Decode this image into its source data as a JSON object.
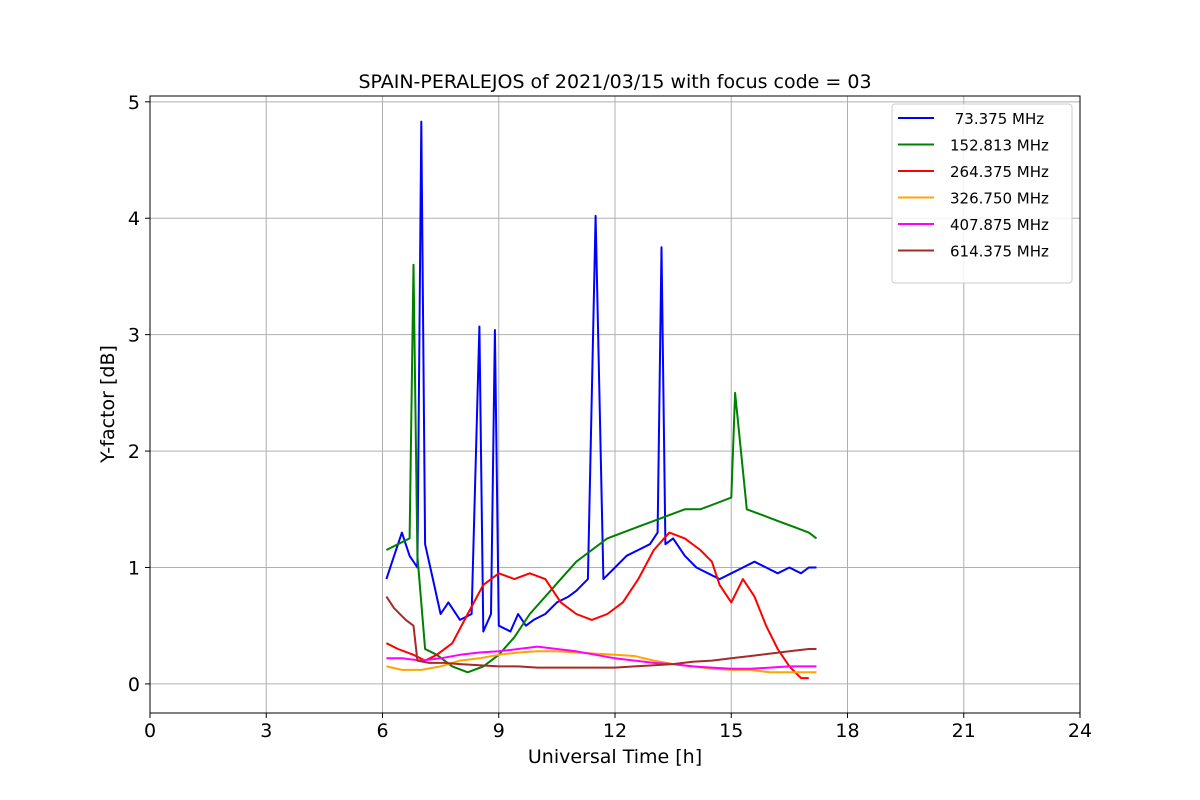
{
  "chart_data": {
    "type": "line",
    "title": "SPAIN-PERALEJOS of 2021/03/15 with focus code = 03",
    "xlabel": "Universal Time [h]",
    "ylabel": "Y-factor [dB]",
    "xlim": [
      0,
      24
    ],
    "ylim": [
      -0.25,
      5.05
    ],
    "xticks": [
      0,
      3,
      6,
      9,
      12,
      15,
      18,
      21,
      24
    ],
    "xtick_labels": [
      "0",
      "3",
      "6",
      "9",
      "12",
      "15",
      "18",
      "21",
      "24"
    ],
    "yticks": [
      0,
      1,
      2,
      3,
      4,
      5
    ],
    "ytick_labels": [
      "0",
      "1",
      "2",
      "3",
      "4",
      "5"
    ],
    "grid": true,
    "legend_position": "top-right",
    "series": [
      {
        "name": " 73.375 MHz",
        "color": "#0000ff",
        "x": [
          6.1,
          6.3,
          6.5,
          6.7,
          6.9,
          7.0,
          7.1,
          7.3,
          7.5,
          7.7,
          8.0,
          8.3,
          8.5,
          8.6,
          8.8,
          8.9,
          9.0,
          9.3,
          9.5,
          9.7,
          9.9,
          10.2,
          10.5,
          10.8,
          11.0,
          11.3,
          11.5,
          11.7,
          12.0,
          12.3,
          12.6,
          12.9,
          13.1,
          13.2,
          13.3,
          13.5,
          13.8,
          14.1,
          14.4,
          14.7,
          15.0,
          15.3,
          15.6,
          15.9,
          16.2,
          16.5,
          16.8,
          17.0,
          17.2
        ],
        "y": [
          0.9,
          1.1,
          1.3,
          1.1,
          1.0,
          4.83,
          1.2,
          0.9,
          0.6,
          0.7,
          0.55,
          0.6,
          3.07,
          0.45,
          0.6,
          3.04,
          0.5,
          0.45,
          0.6,
          0.5,
          0.55,
          0.6,
          0.7,
          0.75,
          0.8,
          0.9,
          4.02,
          0.9,
          1.0,
          1.1,
          1.15,
          1.2,
          1.3,
          3.75,
          1.2,
          1.25,
          1.1,
          1.0,
          0.95,
          0.9,
          0.95,
          1.0,
          1.05,
          1.0,
          0.95,
          1.0,
          0.95,
          1.0,
          1.0
        ]
      },
      {
        "name": "152.813 MHz",
        "color": "#008000",
        "x": [
          6.1,
          6.4,
          6.7,
          6.8,
          6.9,
          7.1,
          7.4,
          7.8,
          8.2,
          8.6,
          9.0,
          9.4,
          9.8,
          10.2,
          10.6,
          11.0,
          11.4,
          11.8,
          12.2,
          12.6,
          13.0,
          13.4,
          13.8,
          14.2,
          14.6,
          15.0,
          15.1,
          15.4,
          15.8,
          16.2,
          16.6,
          17.0,
          17.2
        ],
        "y": [
          1.15,
          1.2,
          1.25,
          3.6,
          1.1,
          0.3,
          0.25,
          0.15,
          0.1,
          0.15,
          0.25,
          0.4,
          0.6,
          0.75,
          0.9,
          1.05,
          1.15,
          1.25,
          1.3,
          1.35,
          1.4,
          1.45,
          1.5,
          1.5,
          1.55,
          1.6,
          2.5,
          1.5,
          1.45,
          1.4,
          1.35,
          1.3,
          1.25
        ]
      },
      {
        "name": "264.375 MHz",
        "color": "#ff0000",
        "x": [
          6.1,
          6.4,
          6.8,
          7.1,
          7.4,
          7.8,
          8.2,
          8.6,
          9.0,
          9.4,
          9.8,
          10.2,
          10.6,
          11.0,
          11.4,
          11.8,
          12.2,
          12.6,
          13.0,
          13.4,
          13.8,
          14.2,
          14.5,
          14.7,
          15.0,
          15.3,
          15.6,
          15.9,
          16.2,
          16.5,
          16.8,
          17.0
        ],
        "y": [
          0.35,
          0.3,
          0.25,
          0.2,
          0.25,
          0.35,
          0.6,
          0.85,
          0.95,
          0.9,
          0.95,
          0.9,
          0.7,
          0.6,
          0.55,
          0.6,
          0.7,
          0.9,
          1.15,
          1.3,
          1.25,
          1.15,
          1.05,
          0.85,
          0.7,
          0.9,
          0.75,
          0.5,
          0.3,
          0.15,
          0.05,
          0.05
        ]
      },
      {
        "name": "326.750 MHz",
        "color": "#ffa500",
        "x": [
          6.1,
          6.5,
          7.0,
          7.5,
          8.0,
          8.5,
          9.0,
          9.5,
          10.0,
          10.5,
          11.0,
          11.5,
          12.0,
          12.5,
          13.0,
          13.5,
          14.0,
          14.5,
          15.0,
          15.5,
          16.0,
          16.5,
          17.0,
          17.2
        ],
        "y": [
          0.15,
          0.12,
          0.12,
          0.15,
          0.2,
          0.22,
          0.25,
          0.27,
          0.28,
          0.28,
          0.27,
          0.26,
          0.25,
          0.24,
          0.2,
          0.17,
          0.15,
          0.13,
          0.12,
          0.12,
          0.1,
          0.1,
          0.1,
          0.1
        ]
      },
      {
        "name": "407.875 MHz",
        "color": "#ff00ff",
        "x": [
          6.1,
          6.5,
          7.0,
          7.5,
          8.0,
          8.5,
          9.0,
          9.5,
          10.0,
          10.5,
          11.0,
          11.5,
          12.0,
          12.5,
          13.0,
          13.5,
          14.0,
          14.5,
          15.0,
          15.5,
          16.0,
          16.5,
          17.0,
          17.2
        ],
        "y": [
          0.22,
          0.22,
          0.2,
          0.22,
          0.25,
          0.27,
          0.28,
          0.3,
          0.32,
          0.3,
          0.28,
          0.25,
          0.22,
          0.2,
          0.18,
          0.17,
          0.15,
          0.14,
          0.13,
          0.13,
          0.14,
          0.15,
          0.15,
          0.15
        ]
      },
      {
        "name": "614.375 MHz",
        "color": "#a52a2a",
        "x": [
          6.1,
          6.3,
          6.6,
          6.8,
          6.9,
          7.2,
          7.6,
          8.0,
          8.5,
          9.0,
          9.5,
          10.0,
          10.5,
          11.0,
          11.5,
          12.0,
          12.5,
          13.0,
          13.5,
          14.0,
          14.5,
          15.0,
          15.5,
          16.0,
          16.5,
          17.0,
          17.2
        ],
        "y": [
          0.75,
          0.65,
          0.55,
          0.5,
          0.2,
          0.18,
          0.18,
          0.17,
          0.16,
          0.15,
          0.15,
          0.14,
          0.14,
          0.14,
          0.14,
          0.14,
          0.15,
          0.16,
          0.17,
          0.19,
          0.2,
          0.22,
          0.24,
          0.26,
          0.28,
          0.3,
          0.3
        ]
      }
    ]
  }
}
